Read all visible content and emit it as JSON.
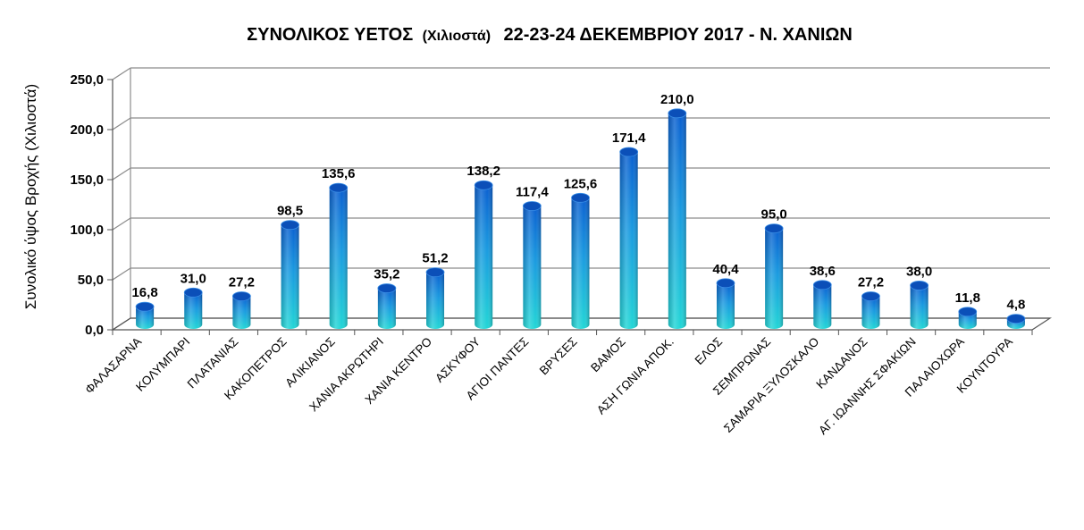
{
  "chart_data": {
    "type": "bar",
    "title_main_1": "ΣΥΝΟΛΙΚΟΣ ΥΕΤΟΣ",
    "title_unit": "(Χιλιοστά)",
    "title_main_2": "22-23-24 ΔΕΚΕΜΒΡΙΟΥ 2017 -  Ν. ΧΑΝΙΩΝ",
    "ylabel": "Συνολικό ύψος Βροχής (Χιλιοστά)",
    "xlabel": "",
    "ylim": [
      0,
      250
    ],
    "ytick_values": [
      0,
      50,
      100,
      150,
      200,
      250
    ],
    "ytick_labels": [
      "0,0",
      "50,0",
      "100,0",
      "150,0",
      "200,0",
      "250,0"
    ],
    "categories": [
      "ΦΑΛΑΣΑΡΝΑ",
      "ΚΟΛΥΜΠΑΡΙ",
      "ΠΛΑΤΑΝΙΑΣ",
      "ΚΑΚΟΠΕΤΡΟΣ",
      "ΑΛΙΚΙΑΝΟΣ",
      "ΧΑΝΙΑ ΑΚΡΩΤΗΡΙ",
      "ΧΑΝΙΑ ΚΕΝΤΡΟ",
      "ΑΣΚΥΦΟΥ",
      "ΑΓΙΟΙ ΠΑΝΤΕΣ",
      "ΒΡΥΣΕΣ",
      "ΒΑΜΟΣ",
      "ΑΣΗ ΓΩΝΙΑ ΑΠΟΚ.",
      "ΕΛΟΣ",
      "ΣΕΜΠΡΩΝΑΣ",
      "ΣΑΜΑΡΙΑ ΞΥΛΟΣΚΑΛΟ",
      "ΚΑΝΔΑΝΟΣ",
      "ΑΓ. ΙΩΑΝΝΗΣ ΣΦΑΚΙΩΝ",
      "ΠΑΛΑΙΟΧΩΡΑ",
      "ΚΟΥΝΤΟΥΡΑ"
    ],
    "values": [
      16.8,
      31.0,
      27.2,
      98.5,
      135.6,
      35.2,
      51.2,
      138.2,
      117.4,
      125.6,
      171.4,
      210.0,
      40.4,
      95.0,
      38.6,
      27.2,
      38.0,
      11.8,
      4.8
    ],
    "value_labels": [
      "16,8",
      "31,0",
      "27,2",
      "98,5",
      "135,6",
      "35,2",
      "51,2",
      "138,2",
      "117,4",
      "125,6",
      "171,4",
      "210,0",
      "40,4",
      "95,0",
      "38,6",
      "27,2",
      "38,0",
      "11,8",
      "4,8"
    ],
    "grid": true,
    "legend": "none",
    "colors": {
      "bar_top": "#0a5fd0",
      "bar_mid": "#1a9be0",
      "bar_bottom": "#22d6d6",
      "grid": "#8c8c8c"
    }
  }
}
